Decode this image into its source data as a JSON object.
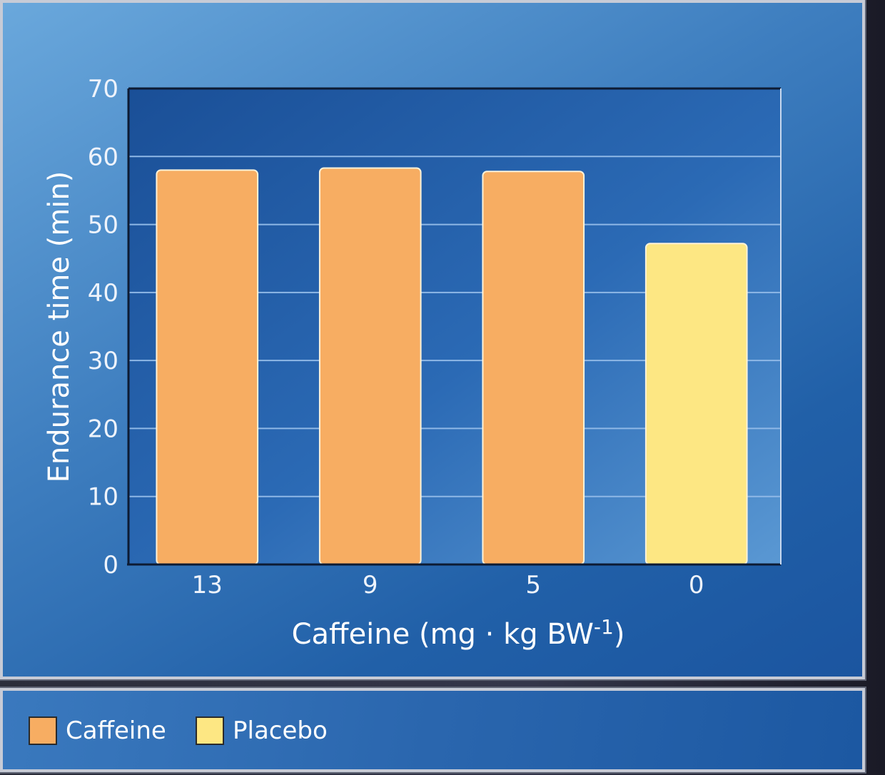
{
  "chart_data": {
    "type": "bar",
    "title": "",
    "xlabel": "Caffeine (mg · kg BW",
    "xlabel_superscript": "-1",
    "xlabel_close": ")",
    "ylabel": "Endurance time (min)",
    "categories": [
      "13",
      "9",
      "5",
      "0"
    ],
    "values": [
      58,
      58.3,
      57.8,
      47.2
    ],
    "bar_series": [
      "Caffeine",
      "Caffeine",
      "Caffeine",
      "Placebo"
    ],
    "ylim": [
      0,
      70
    ],
    "yticks": [
      0,
      10,
      20,
      30,
      40,
      50,
      60,
      70
    ],
    "grid": true,
    "legend_position": "bottom-left",
    "series": [
      {
        "name": "Caffeine",
        "color": "#f7ad62"
      },
      {
        "name": "Placebo",
        "color": "#fde783"
      }
    ]
  }
}
